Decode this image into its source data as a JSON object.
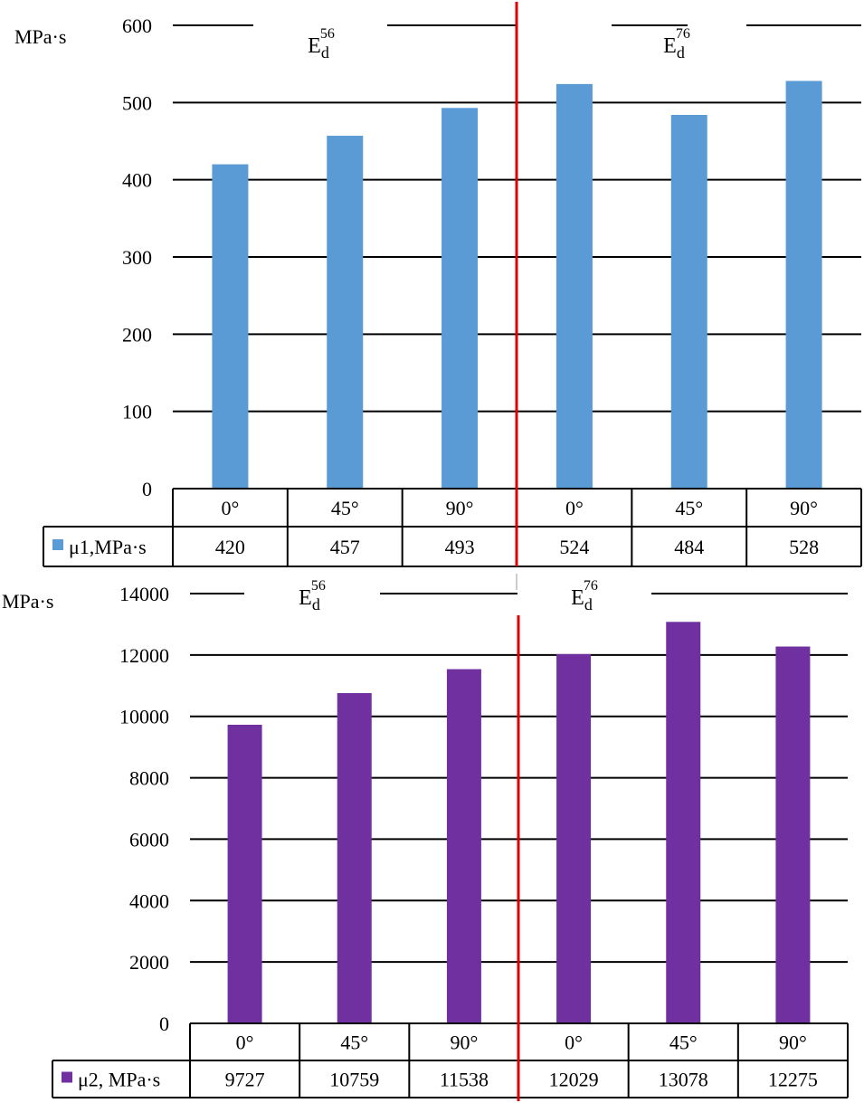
{
  "chart_data": [
    {
      "type": "bar",
      "ylabel": "MPa·s",
      "ylim": [
        0,
        600
      ],
      "yticks": [
        "0",
        "100",
        "200",
        "300",
        "400",
        "500",
        "600"
      ],
      "grid": true,
      "groups": [
        {
          "label": "E",
          "sub": "d",
          "sup": "56"
        },
        {
          "label": "E",
          "sub": "d",
          "sup": "76"
        }
      ],
      "categories": [
        "0°",
        "45°",
        "90°",
        "0°",
        "45°",
        "90°"
      ],
      "series": [
        {
          "name": "μ1,MPa·s",
          "color": "#5b9bd5",
          "values": [
            420,
            457,
            493,
            524,
            484,
            528
          ],
          "value_labels": [
            "420",
            "457",
            "493",
            "524",
            "484",
            "528"
          ]
        }
      ],
      "legend": "data-table-left"
    },
    {
      "type": "bar",
      "ylabel": "MPa·s",
      "ylim": [
        0,
        14000
      ],
      "yticks": [
        "0",
        "2000",
        "4000",
        "6000",
        "8000",
        "10000",
        "12000",
        "14000"
      ],
      "grid": true,
      "groups": [
        {
          "label": "E",
          "sub": "d",
          "sup": "56"
        },
        {
          "label": "E",
          "sub": "d",
          "sup": "76"
        }
      ],
      "categories": [
        "0°",
        "45°",
        "90°",
        "0°",
        "45°",
        "90°"
      ],
      "series": [
        {
          "name": "μ2, MPa·s",
          "color": "#7030a0",
          "values": [
            9727,
            10759,
            11538,
            12029,
            13078,
            12275
          ],
          "value_labels": [
            "9727",
            "10759",
            "11538",
            "12029",
            "13078",
            "12275"
          ]
        }
      ],
      "legend": "data-table-left"
    }
  ],
  "divider_color": "#e00000"
}
